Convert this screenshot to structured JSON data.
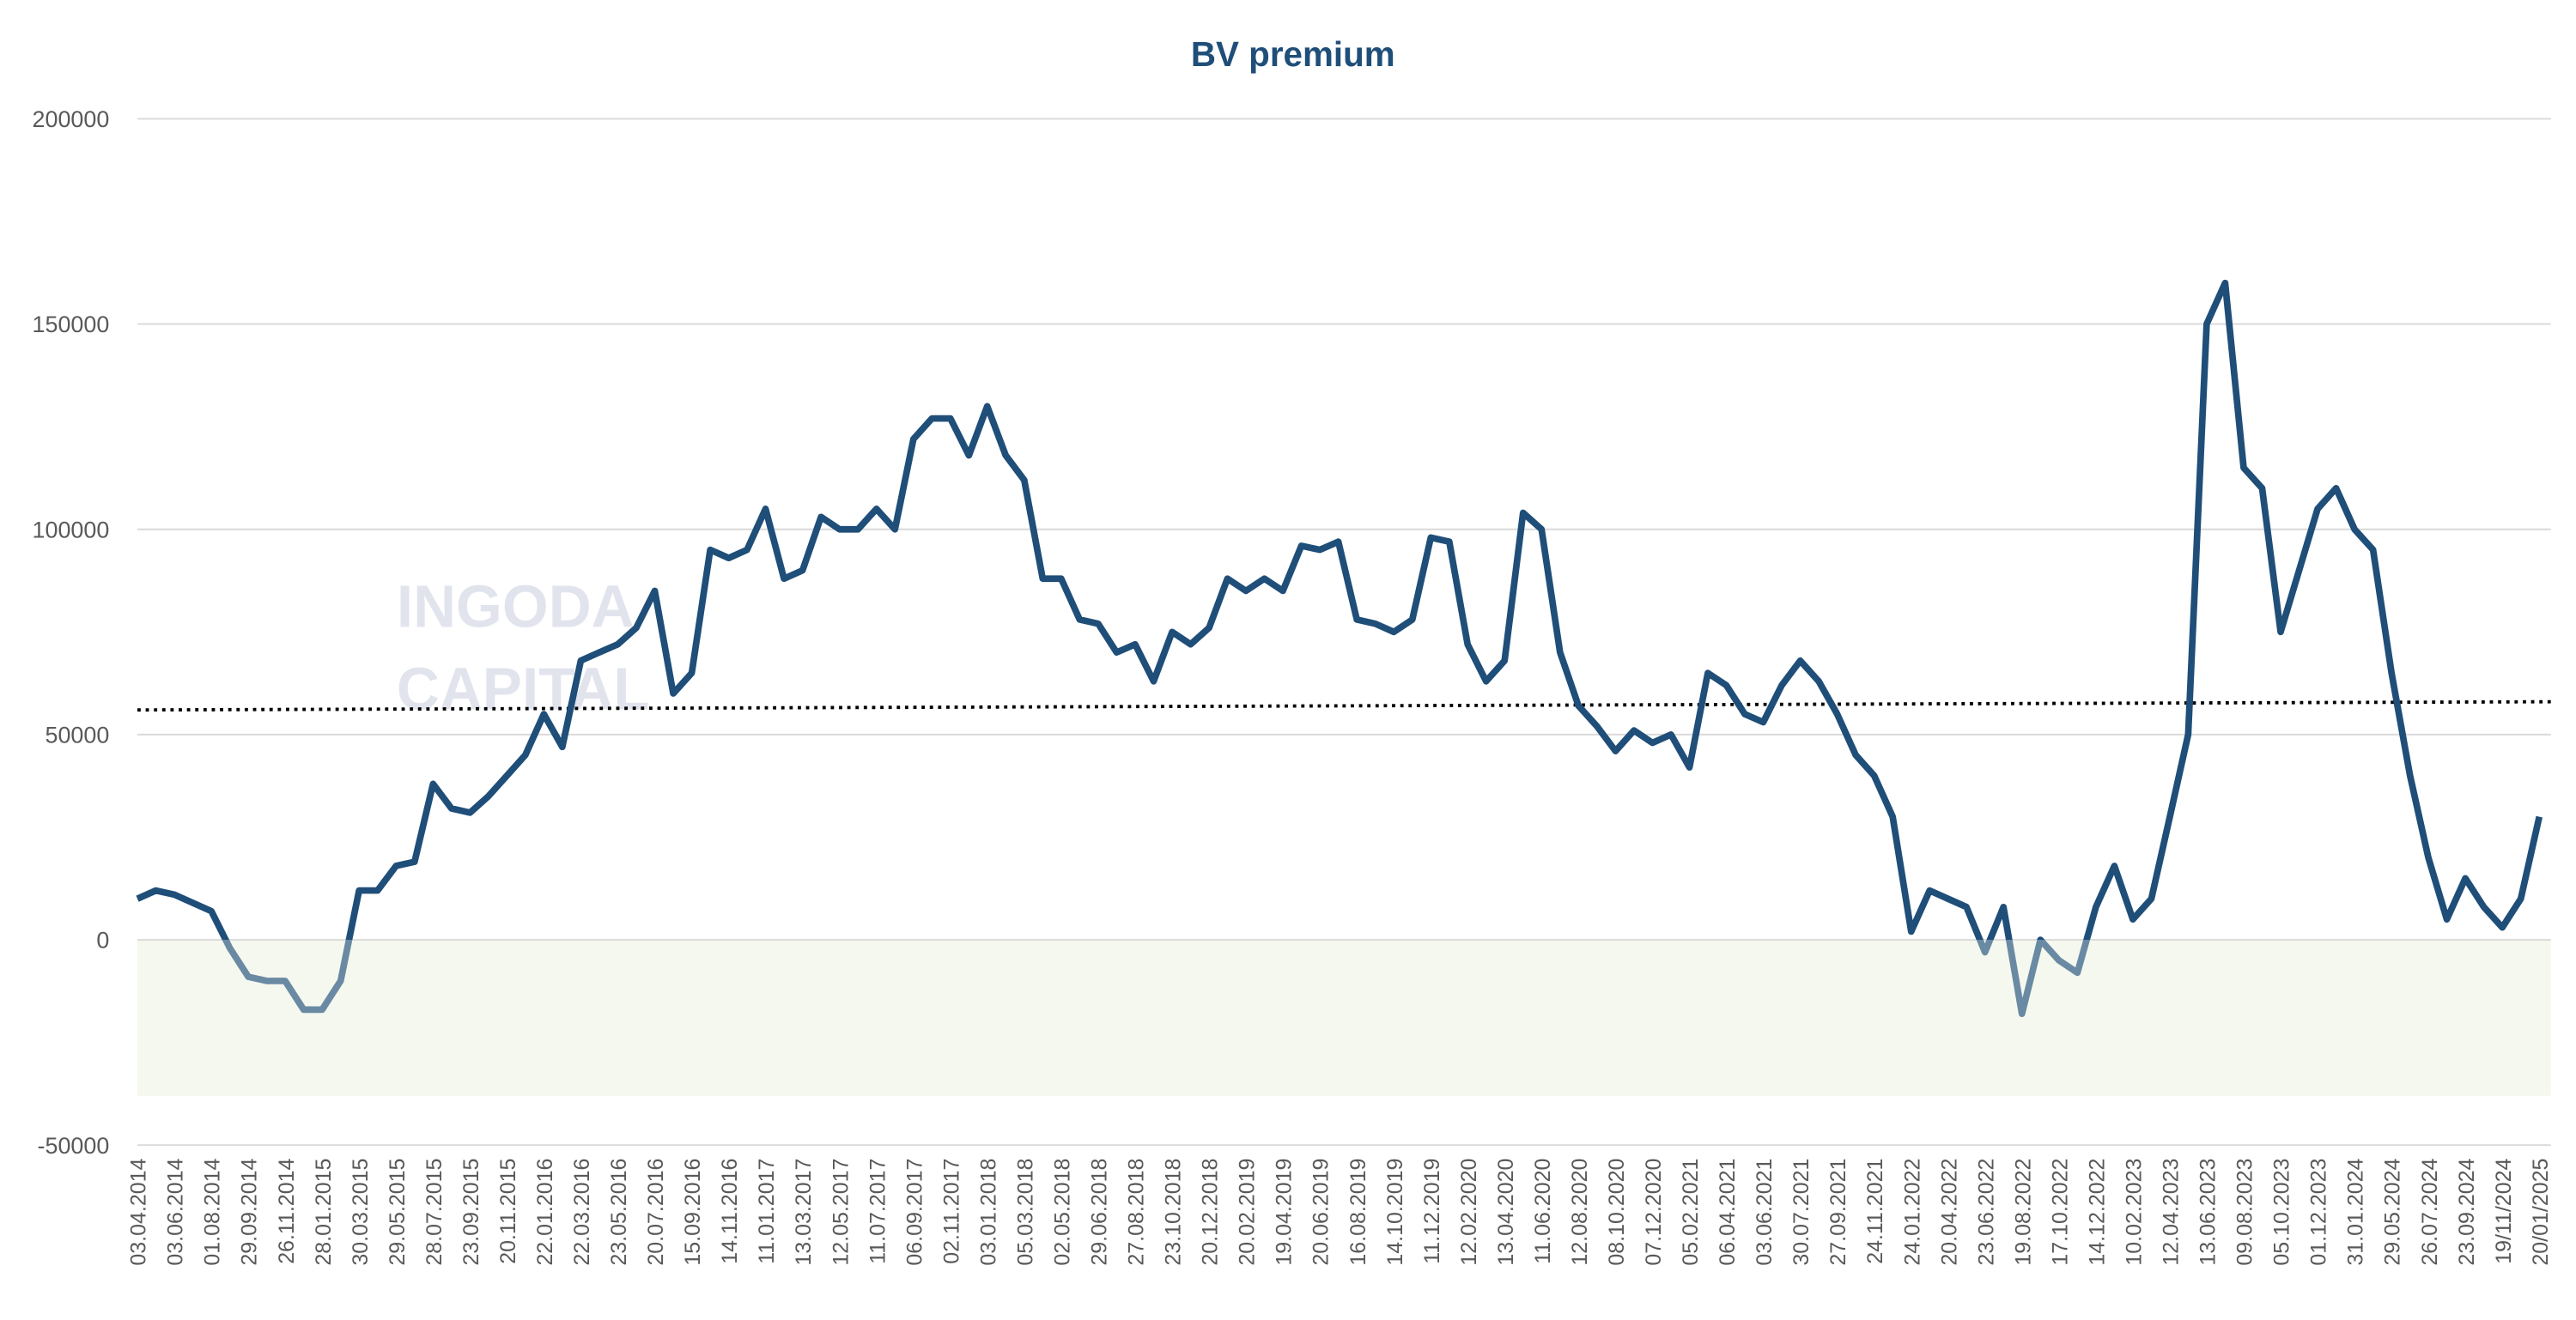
{
  "chart_data": {
    "type": "line",
    "title": "BV premium",
    "watermark": [
      "INGODA",
      "CAPITAL"
    ],
    "categories": [
      "03.04.2014",
      null,
      "03.06.2014",
      null,
      "01.08.2014",
      null,
      "29.09.2014",
      null,
      "26.11.2014",
      null,
      "28.01.2015",
      null,
      "30.03.2015",
      null,
      "29.05.2015",
      null,
      "28.07.2015",
      null,
      "23.09.2015",
      null,
      "20.11.2015",
      null,
      "22.01.2016",
      null,
      "22.03.2016",
      null,
      "23.05.2016",
      null,
      "20.07.2016",
      null,
      "15.09.2016",
      null,
      "14.11.2016",
      null,
      "11.01.2017",
      null,
      "13.03.2017",
      null,
      "12.05.2017",
      null,
      "11.07.2017",
      null,
      "06.09.2017",
      null,
      "02.11.2017",
      null,
      "03.01.2018",
      null,
      "05.03.2018",
      null,
      "02.05.2018",
      null,
      "29.06.2018",
      null,
      "27.08.2018",
      null,
      "23.10.2018",
      null,
      "20.12.2018",
      null,
      "20.02.2019",
      null,
      "19.04.2019",
      null,
      "20.06.2019",
      null,
      "16.08.2019",
      null,
      "14.10.2019",
      null,
      "11.12.2019",
      null,
      "12.02.2020",
      null,
      "13.04.2020",
      null,
      "11.06.2020",
      null,
      "12.08.2020",
      null,
      "08.10.2020",
      null,
      "07.12.2020",
      null,
      "05.02.2021",
      null,
      "06.04.2021",
      null,
      "03.06.2021",
      null,
      "30.07.2021",
      null,
      "27.09.2021",
      null,
      "24.11.2021",
      null,
      "24.01.2022",
      null,
      "20.04.2022",
      null,
      "23.06.2022",
      null,
      "19.08.2022",
      null,
      "17.10.2022",
      null,
      "14.12.2022",
      null,
      "10.02.2023",
      null,
      "12.04.2023",
      null,
      "13.06.2023",
      null,
      "09.08.2023",
      null,
      "05.10.2023",
      null,
      "01.12.2023",
      null,
      "31.01.2024",
      null,
      "29.05.2024",
      null,
      "26.07.2024",
      null,
      "23.09.2024",
      null,
      "19/11/2024",
      null,
      "20/01/2025"
    ],
    "series": [
      {
        "name": "BV premium",
        "color": "#1f4e79",
        "negative_color": "#6a8aa3",
        "values": [
          10000,
          12000,
          11000,
          9000,
          7000,
          -2000,
          -9000,
          -10000,
          -10000,
          -17000,
          -17000,
          -10000,
          12000,
          12000,
          18000,
          19000,
          38000,
          32000,
          31000,
          35000,
          40000,
          45000,
          55000,
          47000,
          68000,
          70000,
          72000,
          76000,
          85000,
          60000,
          65000,
          95000,
          93000,
          95000,
          105000,
          88000,
          90000,
          103000,
          100000,
          100000,
          105000,
          100000,
          122000,
          127000,
          127000,
          118000,
          130000,
          118000,
          112000,
          88000,
          88000,
          78000,
          77000,
          70000,
          72000,
          63000,
          75000,
          72000,
          76000,
          88000,
          85000,
          88000,
          85000,
          96000,
          95000,
          97000,
          78000,
          77000,
          75000,
          78000,
          98000,
          97000,
          72000,
          63000,
          68000,
          104000,
          100000,
          70000,
          57000,
          52000,
          46000,
          51000,
          48000,
          50000,
          42000,
          65000,
          62000,
          55000,
          53000,
          62000,
          68000,
          63000,
          55000,
          45000,
          40000,
          30000,
          2000,
          12000,
          10000,
          8000,
          -3000,
          8000,
          -18000,
          0,
          -5000,
          -8000,
          8000,
          18000,
          5000,
          10000,
          30000,
          50000,
          150000,
          160000,
          115000,
          110000,
          75000,
          90000,
          105000,
          110000,
          100000,
          95000,
          65000,
          40000,
          20000,
          5000,
          15000,
          8000,
          3000,
          10000,
          30000
        ]
      }
    ],
    "reference_line": {
      "values": [
        56000,
        58000
      ],
      "color": "#000000"
    },
    "shade_band": {
      "range": [
        -38000,
        0
      ],
      "color": "#f5f8ef"
    },
    "ylim": [
      -50000,
      200000
    ],
    "yticks": [
      -50000,
      0,
      50000,
      100000,
      150000,
      200000
    ],
    "grid": true
  }
}
